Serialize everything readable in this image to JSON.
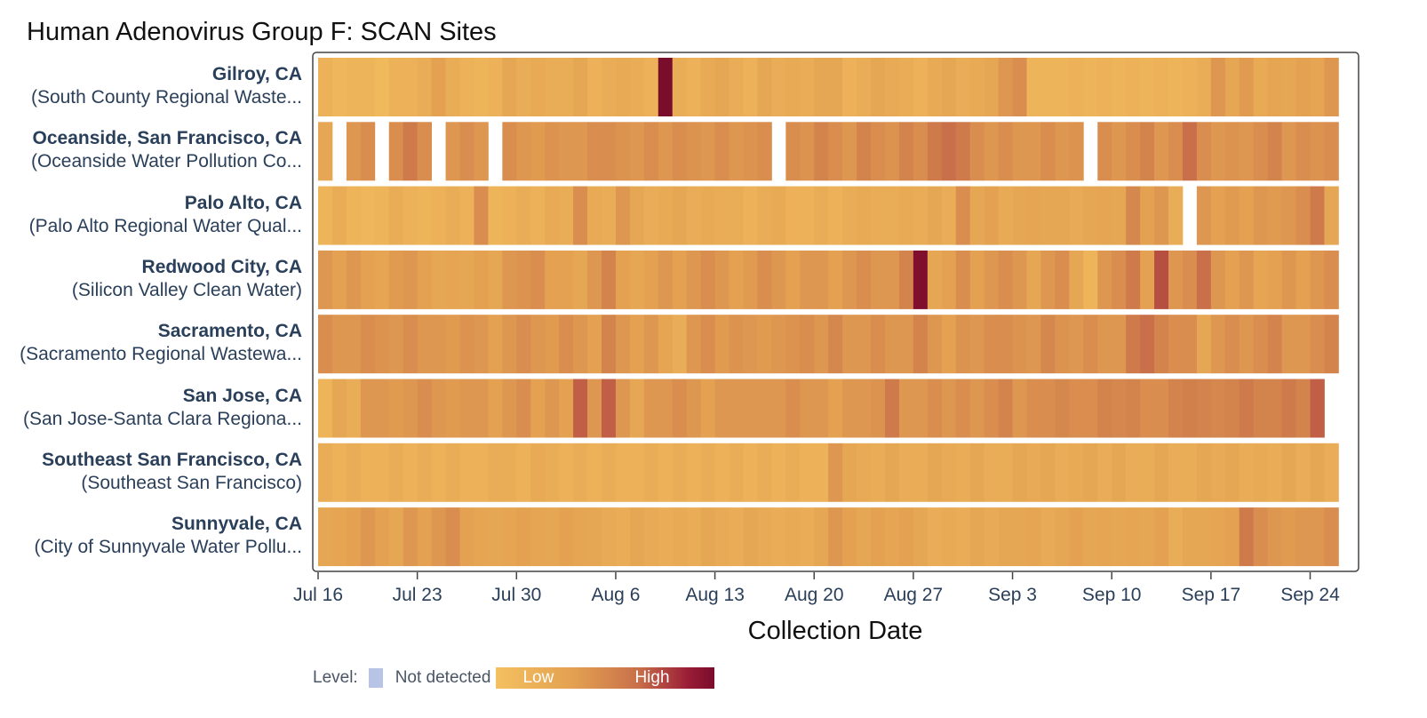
{
  "chart_data": {
    "type": "heatmap",
    "title": "Human Adenovirus Group F: SCAN Sites",
    "xlabel": "Collection Date",
    "ylabel": "",
    "x_range": [
      "2023-07-16",
      "2023-09-26"
    ],
    "start_date": "2023-07-16",
    "num_days": 72,
    "x_ticks": [
      "Jul 16",
      "Jul 23",
      "Jul 30",
      "Aug 6",
      "Aug 13",
      "Aug 20",
      "Aug 27",
      "Sep 3",
      "Sep 10",
      "Sep 17",
      "Sep 24"
    ],
    "value_scale": "0 (Low) to 1 (High); null = no sample",
    "legend": {
      "level_label": "Level:",
      "not_detected_label": "Not detected",
      "low_label": "Low",
      "high_label": "High"
    },
    "colors": {
      "not_detected": "#b8c4e6",
      "scale_stops": [
        "#f4c060",
        "#e3a151",
        "#c9704a",
        "#9a1d36",
        "#7a0c2c"
      ],
      "frame": "#444444",
      "row_gap": "#ffffff"
    },
    "series": [
      {
        "name": "Gilroy, CA",
        "facility": "(South County Regional Waste...",
        "values": [
          0.12,
          0.08,
          0.1,
          0.1,
          0.06,
          0.12,
          0.12,
          0.15,
          0.25,
          0.15,
          0.12,
          0.1,
          0.12,
          0.2,
          0.15,
          0.18,
          0.15,
          0.15,
          0.2,
          0.12,
          0.15,
          0.18,
          0.15,
          0.12,
          1.0,
          0.15,
          0.12,
          0.18,
          0.2,
          0.15,
          0.12,
          0.2,
          0.15,
          0.18,
          0.15,
          0.2,
          0.2,
          0.12,
          0.15,
          0.2,
          0.18,
          0.15,
          0.12,
          0.18,
          0.2,
          0.15,
          0.18,
          0.2,
          0.3,
          0.35,
          0.1,
          0.1,
          0.1,
          0.12,
          0.1,
          0.12,
          0.1,
          0.12,
          0.1,
          0.12,
          0.1,
          0.12,
          0.15,
          0.3,
          0.2,
          0.28,
          0.18,
          0.22,
          0.2,
          0.25,
          0.22,
          0.3
        ]
      },
      {
        "name": "Oceanside, San Francisco, CA",
        "facility": "(Oceanside Water Pollution Co...",
        "values": [
          0.2,
          null,
          0.3,
          0.35,
          null,
          0.35,
          0.45,
          0.35,
          null,
          0.3,
          0.35,
          0.3,
          null,
          0.35,
          0.3,
          0.28,
          0.32,
          0.3,
          0.3,
          0.35,
          0.35,
          0.32,
          0.3,
          0.35,
          0.3,
          0.35,
          0.32,
          0.3,
          0.35,
          0.3,
          0.32,
          0.35,
          null,
          0.35,
          0.32,
          0.4,
          0.35,
          0.3,
          0.4,
          0.35,
          0.32,
          0.4,
          0.35,
          0.45,
          0.5,
          0.45,
          0.35,
          0.3,
          0.35,
          0.3,
          0.3,
          0.35,
          0.3,
          0.32,
          null,
          0.35,
          0.3,
          0.35,
          0.4,
          0.3,
          0.35,
          0.5,
          0.35,
          0.3,
          0.32,
          0.3,
          0.35,
          0.4,
          0.3,
          0.35,
          0.32,
          0.35
        ]
      },
      {
        "name": "Palo Alto, CA",
        "facility": "(Palo Alto Regional Water Qual...",
        "values": [
          0.1,
          0.15,
          0.1,
          0.08,
          0.1,
          0.15,
          0.12,
          0.1,
          0.12,
          0.15,
          0.12,
          0.35,
          0.1,
          0.12,
          0.15,
          0.12,
          0.18,
          0.15,
          0.35,
          0.18,
          0.15,
          0.3,
          0.2,
          0.15,
          0.18,
          0.2,
          0.15,
          0.18,
          0.15,
          0.15,
          0.12,
          0.15,
          0.18,
          0.12,
          0.12,
          0.15,
          0.12,
          0.15,
          0.18,
          0.15,
          0.15,
          0.18,
          0.15,
          0.2,
          0.15,
          0.35,
          0.2,
          0.25,
          0.18,
          0.2,
          0.22,
          0.2,
          0.2,
          0.18,
          0.2,
          0.22,
          0.2,
          0.38,
          0.25,
          0.3,
          0.15,
          null,
          0.3,
          0.25,
          0.28,
          0.25,
          0.3,
          0.28,
          0.3,
          0.35,
          0.45,
          0.2
        ]
      },
      {
        "name": "Redwood City, CA",
        "facility": "(Silicon Valley Clean Water)",
        "values": [
          0.3,
          0.25,
          0.3,
          0.25,
          0.22,
          0.28,
          0.3,
          0.25,
          0.2,
          0.22,
          0.2,
          0.25,
          0.2,
          0.3,
          0.32,
          0.35,
          0.25,
          0.25,
          0.2,
          0.3,
          0.4,
          0.25,
          0.2,
          0.25,
          0.3,
          0.25,
          0.3,
          0.35,
          0.3,
          0.25,
          0.28,
          0.35,
          0.3,
          0.25,
          0.3,
          0.3,
          0.25,
          0.3,
          0.35,
          0.3,
          0.3,
          0.4,
          0.95,
          0.2,
          0.25,
          0.35,
          0.25,
          0.3,
          0.35,
          0.3,
          0.2,
          0.3,
          0.35,
          0.2,
          0.1,
          0.3,
          0.35,
          0.45,
          0.25,
          0.6,
          0.3,
          0.35,
          0.5,
          0.3,
          0.25,
          0.3,
          0.22,
          0.25,
          0.3,
          0.25,
          0.3,
          0.35
        ]
      },
      {
        "name": "Sacramento, CA",
        "facility": "(Sacramento Regional Wastewa...",
        "values": [
          0.35,
          0.3,
          0.3,
          0.35,
          0.32,
          0.3,
          0.35,
          0.3,
          0.3,
          0.28,
          0.32,
          0.3,
          0.25,
          0.3,
          0.35,
          0.3,
          0.28,
          0.35,
          0.3,
          0.25,
          0.4,
          0.3,
          0.25,
          0.3,
          0.22,
          0.15,
          0.3,
          0.35,
          0.28,
          0.32,
          0.3,
          0.28,
          0.3,
          0.32,
          0.35,
          0.3,
          0.38,
          0.3,
          0.3,
          0.35,
          0.3,
          0.3,
          0.4,
          0.3,
          0.25,
          0.32,
          0.3,
          0.35,
          0.35,
          0.32,
          0.3,
          0.38,
          0.32,
          0.3,
          0.35,
          0.3,
          0.3,
          0.45,
          0.5,
          0.4,
          0.35,
          0.35,
          0.2,
          0.3,
          0.35,
          0.3,
          0.35,
          0.4,
          0.3,
          0.3,
          0.35,
          0.4
        ]
      },
      {
        "name": "San Jose, CA",
        "facility": "(San Jose-Santa Clara Regiona...",
        "values": [
          0.1,
          0.2,
          0.15,
          0.3,
          0.3,
          0.28,
          0.3,
          0.35,
          0.3,
          0.28,
          0.3,
          0.3,
          0.25,
          0.3,
          0.35,
          0.25,
          0.3,
          0.25,
          0.55,
          0.3,
          0.55,
          0.3,
          0.2,
          0.3,
          0.3,
          0.35,
          0.3,
          0.25,
          0.3,
          0.3,
          0.3,
          0.3,
          0.3,
          0.35,
          0.3,
          0.3,
          0.25,
          0.3,
          0.3,
          0.32,
          0.45,
          0.3,
          0.3,
          0.35,
          0.3,
          0.35,
          0.3,
          0.35,
          0.4,
          0.3,
          0.35,
          0.35,
          0.38,
          0.35,
          0.35,
          0.4,
          0.38,
          0.4,
          0.35,
          0.35,
          0.4,
          0.42,
          0.4,
          0.38,
          0.4,
          0.45,
          0.4,
          0.4,
          0.45,
          0.4,
          0.55,
          null
        ]
      },
      {
        "name": "Southeast San Francisco, CA",
        "facility": "(Southeast San Francisco)",
        "values": [
          0.15,
          0.12,
          0.15,
          0.12,
          0.12,
          0.15,
          0.12,
          0.15,
          0.12,
          0.15,
          0.12,
          0.12,
          0.15,
          0.15,
          0.12,
          0.18,
          0.15,
          0.12,
          0.15,
          0.12,
          0.15,
          0.12,
          0.12,
          0.15,
          0.12,
          0.15,
          0.12,
          0.15,
          0.12,
          0.15,
          0.12,
          0.15,
          0.12,
          0.15,
          0.12,
          0.12,
          0.3,
          0.2,
          0.18,
          0.15,
          0.2,
          0.15,
          0.15,
          0.2,
          0.18,
          0.15,
          0.2,
          0.15,
          0.15,
          0.2,
          0.18,
          0.2,
          0.15,
          0.18,
          0.2,
          0.15,
          0.2,
          0.15,
          0.15,
          0.2,
          0.15,
          0.15,
          0.2,
          0.18,
          0.2,
          0.15,
          0.18,
          0.15,
          0.2,
          0.15,
          0.2,
          0.15
        ]
      },
      {
        "name": "Sunnyvale, CA",
        "facility": "(City of Sunnyvale Water Pollu...",
        "values": [
          0.2,
          0.22,
          0.25,
          0.3,
          0.25,
          0.2,
          0.3,
          0.25,
          0.3,
          0.35,
          0.25,
          0.22,
          0.2,
          0.22,
          0.25,
          0.22,
          0.2,
          0.25,
          0.22,
          0.2,
          0.18,
          0.15,
          0.2,
          0.18,
          0.15,
          0.18,
          0.15,
          0.2,
          0.18,
          0.15,
          0.2,
          0.18,
          0.15,
          0.18,
          0.15,
          0.2,
          0.3,
          0.25,
          0.2,
          0.25,
          0.22,
          0.25,
          0.2,
          0.15,
          0.18,
          0.15,
          0.2,
          0.18,
          0.2,
          0.2,
          0.22,
          0.18,
          0.2,
          0.25,
          0.2,
          0.22,
          0.2,
          0.22,
          0.2,
          0.25,
          0.15,
          0.2,
          0.2,
          0.22,
          0.25,
          0.45,
          0.35,
          0.3,
          0.28,
          0.3,
          0.3,
          0.35
        ]
      }
    ]
  }
}
